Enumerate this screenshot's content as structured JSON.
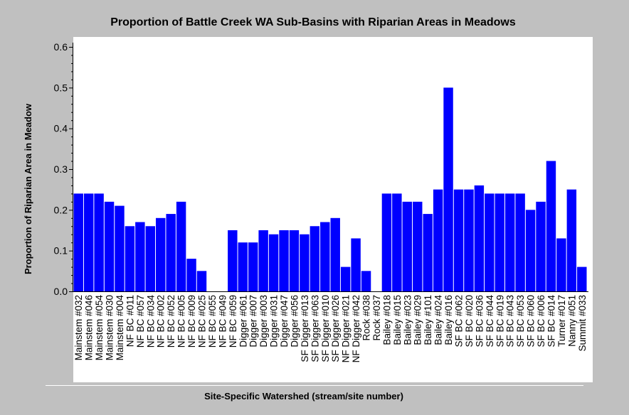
{
  "chart_data": {
    "type": "bar",
    "title": "Proportion of Battle Creek WA Sub-Basins with Riparian Areas in Meadows",
    "xlabel": "Site-Specific Watershed (stream/site number)",
    "ylabel": "Proportion of Riparian Area in Meadow",
    "ylim": [
      0,
      0.6
    ],
    "yticks": [
      "0.0",
      "0.1",
      "0.2",
      "0.3",
      "0.4",
      "0.5",
      "0.6"
    ],
    "grid": false,
    "bar_color": "#0000ff",
    "categories": [
      "Mainstem #032",
      "Mainstem #046",
      "Mainstem #054",
      "Mainstem #030",
      "Mainstem #004",
      "NF BC #011",
      "NF BC #057",
      "NF BC #034",
      "NF BC #002",
      "NF BC #052",
      "NF BC #005",
      "NF BC #009",
      "NF BC #025",
      "NF BC #055",
      "NF BC #049",
      "NF BC #059",
      "Digger #061",
      "Digger #007",
      "Digger #003",
      "Digger #031",
      "Digger #047",
      "Digger #056",
      "SF Digger #013",
      "SF Digger #063",
      "SF Digger #010",
      "SF Digger #026",
      "NF Digger #021",
      "NF Digger #042",
      "Rock #038",
      "Rock #037",
      "Bailey #018",
      "Bailey #015",
      "Bailey #023",
      "Bailey #029",
      "Bailey #101",
      "Bailey #024",
      "Bailey #016",
      "SF BC #062",
      "SF BC #020",
      "SF BC #036",
      "SF BC #044",
      "SF BC #019",
      "SF BC #043",
      "SF BC #053",
      "SF BC #060",
      "SF BC #006",
      "SF BC #014",
      "Turner #017",
      "Nanny #051",
      "Summit #033"
    ],
    "values": [
      0.24,
      0.24,
      0.24,
      0.22,
      0.21,
      0.16,
      0.17,
      0.16,
      0.18,
      0.19,
      0.22,
      0.08,
      0.05,
      0.0,
      0.0,
      0.15,
      0.12,
      0.12,
      0.15,
      0.14,
      0.15,
      0.15,
      0.14,
      0.16,
      0.17,
      0.18,
      0.06,
      0.13,
      0.05,
      0.0,
      0.24,
      0.24,
      0.22,
      0.22,
      0.19,
      0.25,
      0.5,
      0.25,
      0.25,
      0.26,
      0.24,
      0.24,
      0.24,
      0.24,
      0.2,
      0.22,
      0.32,
      0.13,
      0.25,
      0.06
    ]
  }
}
